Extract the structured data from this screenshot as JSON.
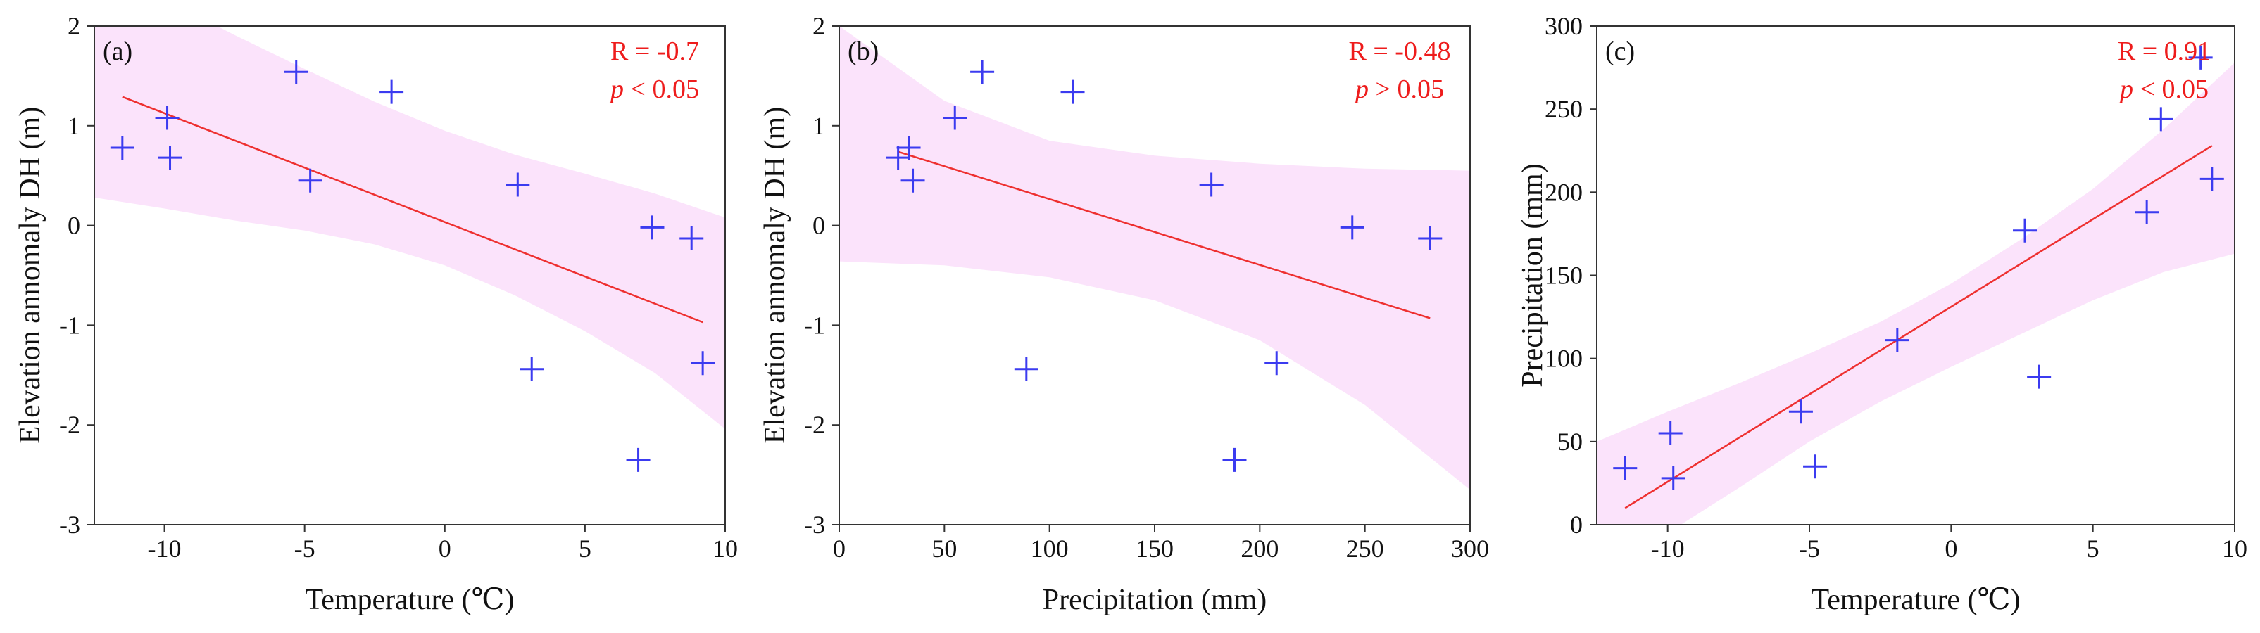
{
  "chart_data": [
    {
      "type": "scatter",
      "panel_label": "(a)",
      "xlabel": "Temperature (℃)",
      "ylabel": "Elevation annomaly DH (m)",
      "xlim": [
        -12.5,
        10
      ],
      "ylim": [
        -3,
        2
      ],
      "xticks": [
        -10,
        -5,
        0,
        5,
        10
      ],
      "yticks": [
        -3,
        -2,
        -1,
        0,
        1,
        2
      ],
      "x": [
        -11.5,
        -9.9,
        -9.8,
        -5.3,
        -4.8,
        -1.9,
        2.6,
        3.1,
        6.9,
        7.4,
        8.8,
        9.2
      ],
      "y": [
        0.78,
        1.08,
        0.68,
        1.54,
        0.45,
        1.34,
        0.41,
        -1.44,
        -2.35,
        -0.02,
        -0.13,
        -1.38
      ],
      "fit_line": {
        "x": [
          -11.5,
          9.2
        ],
        "y": [
          1.29,
          -0.97
        ]
      },
      "confidence_band": {
        "x": [
          -12.5,
          -10,
          -7.5,
          -5,
          -2.5,
          0,
          2.5,
          5,
          7.5,
          10
        ],
        "upper": [
          2.65,
          2.27,
          1.91,
          1.57,
          1.24,
          0.95,
          0.71,
          0.52,
          0.32,
          0.08
        ],
        "lower": [
          0.28,
          0.17,
          0.05,
          -0.05,
          -0.19,
          -0.4,
          -0.7,
          -1.06,
          -1.48,
          -2.04
        ]
      },
      "annotations": [
        "R = -0.7",
        "p",
        " < 0.05"
      ]
    },
    {
      "type": "scatter",
      "panel_label": "(b)",
      "xlabel": "Precipitation (mm)",
      "ylabel": "Elevation annomaly DH (m)",
      "xlim": [
        0,
        300
      ],
      "ylim": [
        -3,
        2
      ],
      "xticks": [
        0,
        50,
        100,
        150,
        200,
        250,
        300
      ],
      "yticks": [
        -3,
        -2,
        -1,
        0,
        1,
        2
      ],
      "x": [
        28,
        33,
        35,
        55,
        68,
        89,
        111,
        177,
        188,
        208,
        244,
        281
      ],
      "y": [
        0.68,
        0.78,
        0.45,
        1.08,
        1.54,
        -1.44,
        1.34,
        0.41,
        -2.35,
        -1.38,
        -0.02,
        -0.13
      ],
      "fit_line": {
        "x": [
          28,
          281
        ],
        "y": [
          0.74,
          -0.93
        ]
      },
      "confidence_band": {
        "x": [
          0,
          50,
          100,
          150,
          200,
          250,
          300
        ],
        "upper": [
          2.0,
          1.25,
          0.85,
          0.7,
          0.62,
          0.57,
          0.55
        ],
        "lower": [
          -0.36,
          -0.4,
          -0.52,
          -0.75,
          -1.15,
          -1.8,
          -2.65
        ]
      },
      "annotations": [
        "R = -0.48",
        "p",
        " > 0.05"
      ]
    },
    {
      "type": "scatter",
      "panel_label": "(c)",
      "xlabel": "Temperature (℃)",
      "ylabel": "Precipitation (mm)",
      "xlim": [
        -12.5,
        10
      ],
      "ylim": [
        0,
        300
      ],
      "xticks": [
        -10,
        -5,
        0,
        5,
        10
      ],
      "yticks": [
        0,
        50,
        100,
        150,
        200,
        250,
        300
      ],
      "x": [
        -11.5,
        -9.9,
        -9.8,
        -5.3,
        -4.8,
        -1.9,
        2.6,
        3.1,
        6.9,
        7.4,
        8.8,
        9.2
      ],
      "y": [
        34,
        55,
        28,
        68,
        35,
        111,
        177,
        89,
        188,
        244,
        281,
        208
      ],
      "fit_line": {
        "x": [
          -11.5,
          9.2
        ],
        "y": [
          10,
          228
        ]
      },
      "confidence_band": {
        "x": [
          -12.5,
          -10,
          -7.5,
          -5,
          -2.5,
          0,
          2.5,
          5,
          7.5,
          10
        ],
        "upper": [
          50,
          68,
          85,
          103,
          122,
          145,
          172,
          202,
          238,
          278
        ],
        "lower": [
          -30,
          -5,
          22,
          50,
          74,
          95,
          115,
          135,
          152,
          163
        ]
      },
      "annotations": [
        "R = 0.91",
        "p",
        " < 0.05"
      ]
    }
  ],
  "colors": {
    "marker": "#3b3bf0",
    "fit_line": "#ee3030",
    "band": "#fbe3fb",
    "annotation": "#ee1c1c",
    "axis": "#333333"
  }
}
